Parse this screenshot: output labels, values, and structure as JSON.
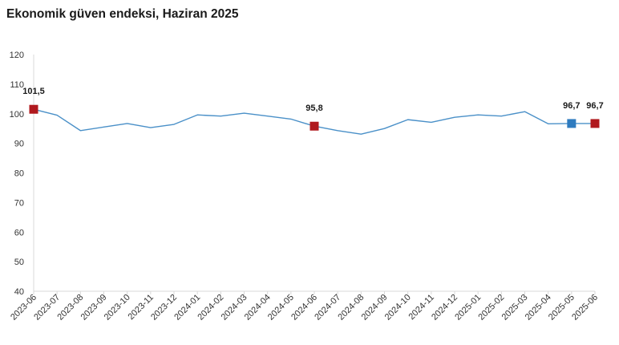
{
  "title": "Ekonomik güven endeksi, Haziran 2025",
  "chart_data": {
    "type": "line",
    "title": "Ekonomik güven endeksi, Haziran 2025",
    "xlabel": "",
    "ylabel": "",
    "ylim": [
      40,
      120
    ],
    "yticks": [
      40,
      50,
      60,
      70,
      80,
      90,
      100,
      110,
      120
    ],
    "grid": false,
    "categories": [
      "2023-06",
      "2023-07",
      "2023-08",
      "2023-09",
      "2023-10",
      "2023-11",
      "2023-12",
      "2024-01",
      "2024-02",
      "2024-03",
      "2024-04",
      "2024-05",
      "2024-06",
      "2024-07",
      "2024-08",
      "2024-09",
      "2024-10",
      "2024-11",
      "2024-12",
      "2025-01",
      "2025-02",
      "2025-03",
      "2025-04",
      "2025-05",
      "2025-06"
    ],
    "series": [
      {
        "values": [
          101.5,
          99.5,
          94.3,
          95.5,
          96.7,
          95.3,
          96.4,
          99.6,
          99.2,
          100.2,
          99.2,
          98.2,
          95.8,
          94.3,
          93.1,
          95.0,
          98.0,
          97.1,
          98.8,
          99.6,
          99.2,
          100.7,
          96.6,
          96.7,
          96.7
        ],
        "color": "#4a90c8"
      }
    ],
    "markers": [
      {
        "index": 0,
        "value": 101.5,
        "label": "101,5",
        "color": "#b0191e"
      },
      {
        "index": 12,
        "value": 95.8,
        "label": "95,8",
        "color": "#b0191e"
      },
      {
        "index": 23,
        "value": 96.7,
        "label": "96,7",
        "color": "#2e7bbf"
      },
      {
        "index": 24,
        "value": 96.7,
        "label": "96,7",
        "color": "#b0191e"
      }
    ],
    "axis_color": "#d9d9d9"
  }
}
